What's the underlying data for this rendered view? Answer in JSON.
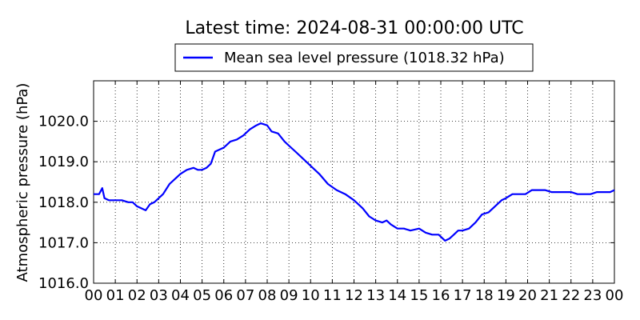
{
  "chart_data": {
    "type": "line",
    "title": "Latest time: 2024-08-31 00:00:00 UTC",
    "xlabel": "",
    "ylabel": "Atmospheric pressure (hPa)",
    "xlim": [
      0,
      24
    ],
    "ylim": [
      1016.0,
      1021.0
    ],
    "x_tick_labels": [
      "00",
      "01",
      "02",
      "03",
      "04",
      "05",
      "06",
      "07",
      "08",
      "09",
      "10",
      "11",
      "12",
      "13",
      "14",
      "15",
      "16",
      "17",
      "18",
      "19",
      "20",
      "21",
      "22",
      "23",
      "00"
    ],
    "y_ticks": [
      1016.0,
      1017.0,
      1018.0,
      1019.0,
      1020.0
    ],
    "y_tick_labels": [
      "1016.0",
      "1017.0",
      "1018.0",
      "1019.0",
      "1020.0"
    ],
    "grid": true,
    "legend_position": "top-center, outside plot",
    "series": [
      {
        "name": "Mean sea level pressure (1018.32 hPa)",
        "color": "#0000ff",
        "x": [
          0,
          0.25,
          0.4,
          0.5,
          0.7,
          1.0,
          1.3,
          1.6,
          1.8,
          2.0,
          2.2,
          2.4,
          2.6,
          2.8,
          3.0,
          3.2,
          3.5,
          3.8,
          4.0,
          4.3,
          4.6,
          4.8,
          5.0,
          5.2,
          5.4,
          5.6,
          5.8,
          6.0,
          6.3,
          6.6,
          6.9,
          7.2,
          7.5,
          7.7,
          8.0,
          8.2,
          8.5,
          8.8,
          9.0,
          9.3,
          9.6,
          10.0,
          10.4,
          10.8,
          11.2,
          11.6,
          12.0,
          12.4,
          12.7,
          13.0,
          13.3,
          13.5,
          13.7,
          14.0,
          14.3,
          14.6,
          15.0,
          15.3,
          15.6,
          15.9,
          16.2,
          16.4,
          16.6,
          16.8,
          17.0,
          17.3,
          17.6,
          17.9,
          18.2,
          18.5,
          18.8,
          19.0,
          19.3,
          19.6,
          19.9,
          20.2,
          20.5,
          20.8,
          21.1,
          21.4,
          21.7,
          22.0,
          22.3,
          22.6,
          22.9,
          23.2,
          23.5,
          23.8,
          24.0
        ],
        "values": [
          1018.2,
          1018.2,
          1018.35,
          1018.1,
          1018.05,
          1018.05,
          1018.05,
          1018.0,
          1018.0,
          1017.9,
          1017.85,
          1017.8,
          1017.95,
          1018.0,
          1018.1,
          1018.2,
          1018.45,
          1018.6,
          1018.7,
          1018.8,
          1018.85,
          1018.8,
          1018.8,
          1018.85,
          1018.95,
          1019.25,
          1019.3,
          1019.35,
          1019.5,
          1019.55,
          1019.65,
          1019.8,
          1019.9,
          1019.95,
          1019.9,
          1019.75,
          1019.7,
          1019.5,
          1019.4,
          1019.25,
          1019.1,
          1018.9,
          1018.7,
          1018.45,
          1018.3,
          1018.2,
          1018.05,
          1017.85,
          1017.65,
          1017.55,
          1017.5,
          1017.55,
          1017.45,
          1017.35,
          1017.35,
          1017.3,
          1017.35,
          1017.25,
          1017.2,
          1017.2,
          1017.05,
          1017.1,
          1017.2,
          1017.3,
          1017.3,
          1017.35,
          1017.5,
          1017.7,
          1017.75,
          1017.9,
          1018.05,
          1018.1,
          1018.2,
          1018.2,
          1018.2,
          1018.3,
          1018.3,
          1018.3,
          1018.25,
          1018.25,
          1018.25,
          1018.25,
          1018.2,
          1018.2,
          1018.2,
          1018.25,
          1018.25,
          1018.25,
          1018.3
        ]
      }
    ]
  }
}
